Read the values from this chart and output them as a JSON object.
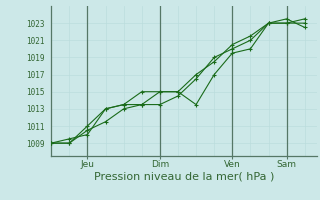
{
  "bg_color": "#cce8e8",
  "grid_color_minor": "#bbdddd",
  "grid_color_major": "#aacccc",
  "line_color": "#1a6b1a",
  "xlabel": "Pression niveau de la mer( hPa )",
  "xlabel_fontsize": 8,
  "yticks": [
    1009,
    1011,
    1013,
    1015,
    1017,
    1019,
    1021,
    1023
  ],
  "ylim": [
    1007.5,
    1025.0
  ],
  "xlim": [
    0,
    88
  ],
  "xtick_positions": [
    12,
    36,
    60,
    78
  ],
  "xtick_labels": [
    "Jeu",
    "Dim",
    "Ven",
    "Sam"
  ],
  "vline_positions": [
    12,
    36,
    60,
    78
  ],
  "series1_x": [
    0,
    6,
    12,
    18,
    24,
    30,
    36,
    42,
    48,
    54,
    60,
    66,
    72,
    78,
    84
  ],
  "series1_y": [
    1009.0,
    1009.0,
    1010.5,
    1011.5,
    1013.0,
    1013.5,
    1013.5,
    1014.5,
    1016.5,
    1019.0,
    1020.0,
    1021.0,
    1023.0,
    1023.0,
    1023.5
  ],
  "series2_x": [
    0,
    6,
    12,
    18,
    24,
    30,
    36,
    42,
    48,
    54,
    60,
    66,
    72,
    78,
    84
  ],
  "series2_y": [
    1009.0,
    1009.0,
    1011.0,
    1013.0,
    1013.5,
    1013.5,
    1015.0,
    1015.0,
    1013.5,
    1017.0,
    1019.5,
    1020.0,
    1023.0,
    1023.5,
    1022.5
  ],
  "series3_x": [
    0,
    6,
    12,
    18,
    24,
    30,
    36,
    42,
    48,
    54,
    60,
    66,
    72,
    78,
    84
  ],
  "series3_y": [
    1009.0,
    1009.5,
    1010.0,
    1013.0,
    1013.5,
    1015.0,
    1015.0,
    1015.0,
    1017.0,
    1018.5,
    1020.5,
    1021.5,
    1023.0,
    1023.0,
    1023.0
  ]
}
